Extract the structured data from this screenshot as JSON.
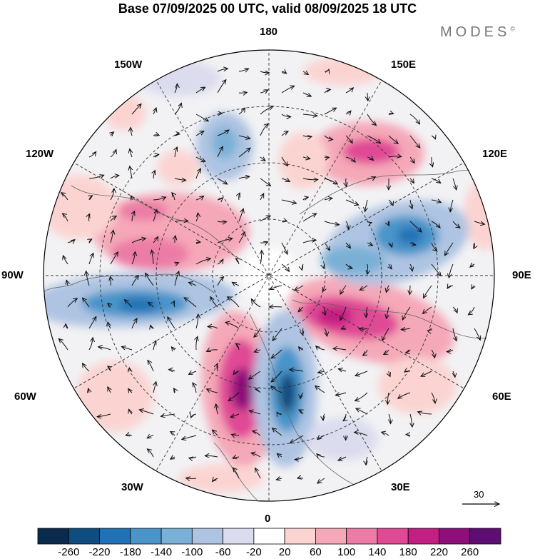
{
  "title": "Base 07/09/2025 00 UTC, valid 08/09/2025 18 UTC",
  "brand": "MODES",
  "brand_mark": "©",
  "longitude_labels": {
    "n180": "180",
    "w150": "150W",
    "e150": "150E",
    "w120": "120W",
    "e120": "120E",
    "w90": "90W",
    "e90": "90E",
    "w60": "60W",
    "e60": "60E",
    "w30": "30W",
    "e30": "30E",
    "zero": "0"
  },
  "reference_vector": {
    "label": "30"
  },
  "colorbar": {
    "colors": [
      "#0b2b4d",
      "#0f4c7f",
      "#2171b5",
      "#4a94c9",
      "#7ab0d6",
      "#aec4e2",
      "#dcdcef",
      "#ffffff",
      "#fbd4d2",
      "#f5a8b8",
      "#ec7ba6",
      "#e04a95",
      "#c41d83",
      "#8e0f7a",
      "#5e0d72"
    ],
    "ticks": [
      "-260",
      "-220",
      "-180",
      "-140",
      "-100",
      "-60",
      "-20",
      "20",
      "60",
      "100",
      "140",
      "180",
      "220",
      "260"
    ]
  },
  "colors": {
    "land_outline": "#666666",
    "grid": "#333333",
    "arrow": "#111111"
  }
}
